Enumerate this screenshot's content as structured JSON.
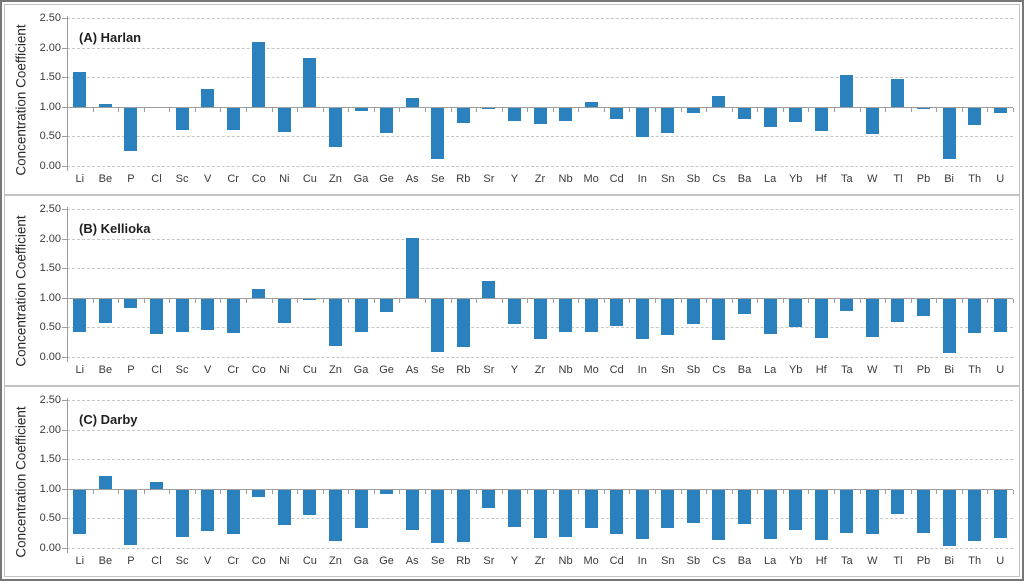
{
  "figure": {
    "ylabel": "Concentration Coefficient",
    "ytick_labels": [
      "2.50",
      "2.00",
      "1.50",
      "1.00",
      "0.50",
      "0.00"
    ],
    "ytick_values": [
      2.5,
      2.0,
      1.5,
      1.0,
      0.5,
      0.0
    ]
  },
  "colors": {
    "bar": "#2b80be",
    "gridline": "#c6c6c6",
    "axis": "#9d9d9d",
    "text": "#3a3a3a"
  },
  "chart_data": [
    {
      "type": "bar",
      "title": "(A) Harlan",
      "ylabel": "Concentration Coefficient",
      "ylim": [
        0,
        2.5
      ],
      "bar_baseline": 1.0,
      "grid": "horizontal dashed every 0.50",
      "legend": "none",
      "categories": [
        "Li",
        "Be",
        "P",
        "Cl",
        "Sc",
        "V",
        "Cr",
        "Co",
        "Ni",
        "Cu",
        "Zn",
        "Ga",
        "Ge",
        "As",
        "Se",
        "Rb",
        "Sr",
        "Y",
        "Zr",
        "Nb",
        "Mo",
        "Cd",
        "In",
        "Sn",
        "Sb",
        "Cs",
        "Ba",
        "La",
        "Yb",
        "Hf",
        "Ta",
        "W",
        "Tl",
        "Pb",
        "Bi",
        "Th",
        "U"
      ],
      "values": [
        1.59,
        1.05,
        0.26,
        1.0,
        0.6,
        1.3,
        0.61,
        2.1,
        0.57,
        1.83,
        0.32,
        0.93,
        0.55,
        1.15,
        0.11,
        0.72,
        0.97,
        0.76,
        0.71,
        0.76,
        1.08,
        0.8,
        0.49,
        0.56,
        0.9,
        1.18,
        0.79,
        0.66,
        0.75,
        0.59,
        1.53,
        0.54,
        1.47,
        0.97,
        0.11,
        0.7,
        0.9
      ]
    },
    {
      "type": "bar",
      "title": "(B) Kellioka",
      "ylabel": "Concentration Coefficient",
      "ylim": [
        0,
        2.5
      ],
      "bar_baseline": 1.0,
      "grid": "horizontal dashed every 0.50",
      "legend": "none",
      "categories": [
        "Li",
        "Be",
        "P",
        "Cl",
        "Sc",
        "V",
        "Cr",
        "Co",
        "Ni",
        "Cu",
        "Zn",
        "Ga",
        "Ge",
        "As",
        "Se",
        "Rb",
        "Sr",
        "Y",
        "Zr",
        "Nb",
        "Mo",
        "Cd",
        "In",
        "Sn",
        "Sb",
        "Cs",
        "Ba",
        "La",
        "Yb",
        "Hf",
        "Ta",
        "W",
        "Tl",
        "Pb",
        "Bi",
        "Th",
        "U"
      ],
      "values": [
        0.43,
        0.58,
        0.83,
        0.39,
        0.42,
        0.46,
        0.41,
        1.15,
        0.57,
        0.97,
        0.18,
        0.43,
        0.76,
        2.01,
        0.08,
        0.17,
        1.29,
        0.56,
        0.31,
        0.42,
        0.43,
        0.52,
        0.3,
        0.37,
        0.55,
        0.29,
        0.73,
        0.39,
        0.51,
        0.32,
        0.77,
        0.34,
        0.59,
        0.7,
        0.07,
        0.4,
        0.43
      ]
    },
    {
      "type": "bar",
      "title": "(C) Darby",
      "ylabel": "Concentration Coefficient",
      "ylim": [
        0,
        2.5
      ],
      "bar_baseline": 1.0,
      "grid": "horizontal dashed every 0.50",
      "legend": "none",
      "categories": [
        "Li",
        "Be",
        "P",
        "Cl",
        "Sc",
        "V",
        "Cr",
        "Co",
        "Ni",
        "Cu",
        "Zn",
        "Ga",
        "Ge",
        "As",
        "Se",
        "Rb",
        "Sr",
        "Y",
        "Zr",
        "Nb",
        "Mo",
        "Cd",
        "In",
        "Sn",
        "Sb",
        "Cs",
        "Ba",
        "La",
        "Yb",
        "Hf",
        "Ta",
        "W",
        "Tl",
        "Pb",
        "Bi",
        "Th",
        "U"
      ],
      "values": [
        0.24,
        1.22,
        0.05,
        1.11,
        0.19,
        0.29,
        0.23,
        0.86,
        0.39,
        0.56,
        0.12,
        0.34,
        0.91,
        0.3,
        0.08,
        0.1,
        0.67,
        0.36,
        0.17,
        0.19,
        0.34,
        0.23,
        0.15,
        0.34,
        0.42,
        0.13,
        0.4,
        0.16,
        0.31,
        0.14,
        0.25,
        0.24,
        0.57,
        0.25,
        0.04,
        0.12,
        0.17
      ]
    }
  ]
}
